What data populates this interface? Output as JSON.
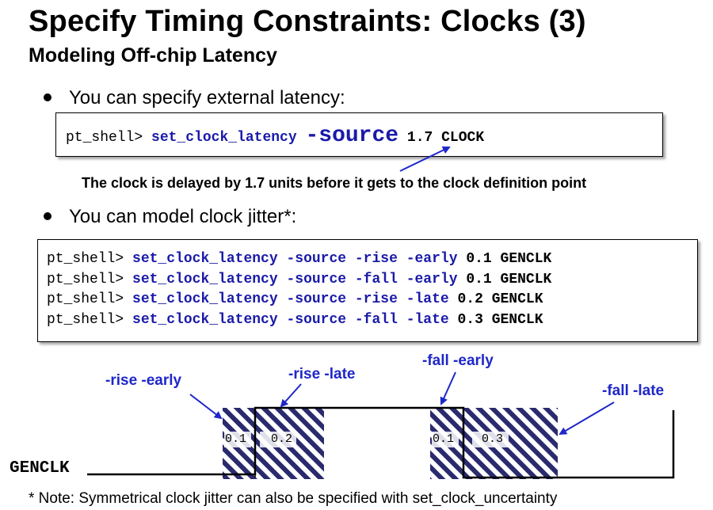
{
  "title": "Specify Timing Constraints:  Clocks (3)",
  "subtitle": "Modeling Off-chip Latency",
  "bullet1": "You can specify external latency:",
  "code1": {
    "prompt": "pt_shell> ",
    "cmd": "set_clock_latency ",
    "opt": "-source",
    "value": " 1.7 ",
    "clock": "CLOCK"
  },
  "note1": "The clock is delayed by 1.7 units before it gets to the clock definition point",
  "bullet2": "You can model clock jitter*:",
  "code2": {
    "lines": [
      {
        "prompt": "pt_shell> ",
        "cmd": "set_clock_latency -source -rise -early ",
        "value": "0.1 GENCLK"
      },
      {
        "prompt": "pt_shell> ",
        "cmd": "set_clock_latency -source -fall -early ",
        "value": "0.1 GENCLK"
      },
      {
        "prompt": "pt_shell> ",
        "cmd": "set_clock_latency -source -rise -late ",
        "value": "0.2 GENCLK"
      },
      {
        "prompt": "pt_shell> ",
        "cmd": "set_clock_latency -source -fall -late ",
        "value": "0.3 GENCLK"
      }
    ]
  },
  "waveform": {
    "labels": {
      "rise_early": "-rise -early",
      "rise_late": "-rise -late",
      "fall_early": "-fall -early",
      "fall_late": "-fall -late"
    },
    "values": {
      "rise_early": "0.1",
      "rise_late": "0.2",
      "fall_early": "0.1",
      "fall_late": "0.3"
    },
    "signal": "GENCLK",
    "colors": {
      "label": "#1f27c8",
      "hatch": "#2a2a6e",
      "command": "#1a1aa8"
    }
  },
  "footnote": "* Note: Symmetrical clock jitter can also be specified with set_clock_uncertainty"
}
